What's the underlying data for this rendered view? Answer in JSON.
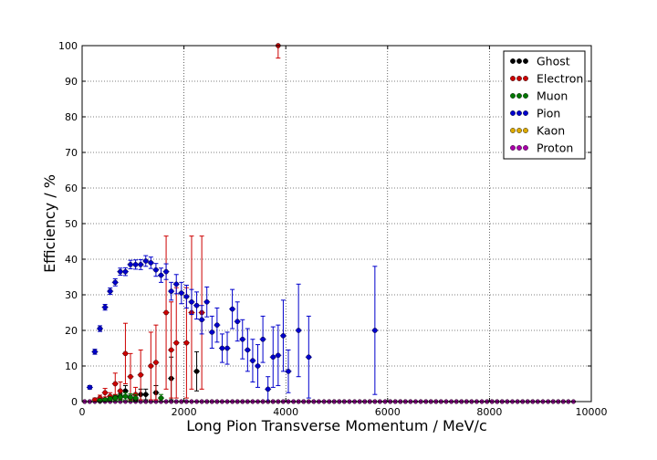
{
  "chart_data": {
    "type": "scatter",
    "title": "",
    "xlabel": "Long Pion Transverse Momentum / MeV/c",
    "ylabel": "Efficiency / %",
    "xlim": [
      0,
      10000
    ],
    "ylim": [
      0,
      100
    ],
    "xticks": [
      "0",
      "2000",
      "4000",
      "6000",
      "8000",
      "10000"
    ],
    "yticks": [
      "0",
      "10",
      "20",
      "30",
      "40",
      "50",
      "60",
      "70",
      "80",
      "90",
      "100"
    ],
    "grid": true,
    "legend_position": "top-right",
    "bin_width": 100,
    "x_start": 50,
    "n_bins": 97,
    "series": [
      {
        "name": "Ghost",
        "color": "#000000",
        "points": [
          [
            450,
            0.5,
            0.3
          ],
          [
            550,
            0.8,
            0.5
          ],
          [
            650,
            1.2,
            0.6
          ],
          [
            750,
            1.5,
            0.8
          ],
          [
            850,
            3.0,
            1.5
          ],
          [
            950,
            1.0,
            0.8
          ],
          [
            1050,
            0.5,
            0.5
          ],
          [
            1150,
            2.0,
            1.5
          ],
          [
            1250,
            2.0,
            1.5
          ],
          [
            1450,
            2.5,
            2.0
          ],
          [
            1750,
            6.5,
            6.0
          ],
          [
            2250,
            8.5,
            5.5
          ]
        ]
      },
      {
        "name": "Electron",
        "color": "#cc0000",
        "points": [
          [
            250,
            0.5,
            0.5
          ],
          [
            350,
            1.0,
            0.8
          ],
          [
            450,
            2.5,
            1.2
          ],
          [
            550,
            1.5,
            1.0
          ],
          [
            650,
            5.0,
            3.0
          ],
          [
            750,
            3.0,
            2.5
          ],
          [
            850,
            13.5,
            8.5
          ],
          [
            950,
            7.0,
            6.5
          ],
          [
            1050,
            2.0,
            2.0
          ],
          [
            1150,
            7.5,
            7.0
          ],
          [
            1350,
            10.0,
            9.5
          ],
          [
            1450,
            11.0,
            10.5
          ],
          [
            1650,
            25.0,
            21.5
          ],
          [
            1750,
            14.5,
            13.5
          ],
          [
            1850,
            16.5,
            15.5
          ],
          [
            2050,
            16.5,
            15.5
          ],
          [
            2150,
            25.0,
            21.5
          ],
          [
            2350,
            25.0,
            21.5
          ],
          [
            3850,
            100.0,
            3.5
          ]
        ]
      },
      {
        "name": "Muon",
        "color": "#007700",
        "points": [
          [
            350,
            0.3,
            0.3
          ],
          [
            450,
            0.5,
            0.4
          ],
          [
            550,
            0.8,
            0.5
          ],
          [
            650,
            1.0,
            0.7
          ],
          [
            750,
            1.2,
            0.8
          ],
          [
            850,
            1.5,
            1.0
          ],
          [
            950,
            1.2,
            1.0
          ],
          [
            1050,
            1.0,
            1.0
          ],
          [
            1550,
            1.0,
            1.0
          ]
        ]
      },
      {
        "name": "Pion",
        "color": "#0000cc",
        "points": [
          [
            150,
            4.0,
            0.5
          ],
          [
            250,
            14.0,
            0.7
          ],
          [
            350,
            20.5,
            0.8
          ],
          [
            450,
            26.5,
            0.8
          ],
          [
            550,
            31.0,
            0.9
          ],
          [
            650,
            33.5,
            1.0
          ],
          [
            750,
            36.5,
            1.0
          ],
          [
            850,
            36.5,
            1.1
          ],
          [
            950,
            38.5,
            1.2
          ],
          [
            1050,
            38.5,
            1.3
          ],
          [
            1150,
            38.5,
            1.4
          ],
          [
            1250,
            39.5,
            1.5
          ],
          [
            1350,
            39.0,
            1.6
          ],
          [
            1450,
            37.0,
            1.8
          ],
          [
            1550,
            35.5,
            2.0
          ],
          [
            1650,
            36.5,
            2.2
          ],
          [
            1750,
            31.0,
            2.5
          ],
          [
            1850,
            33.0,
            2.7
          ],
          [
            1950,
            30.5,
            3.0
          ],
          [
            2050,
            29.5,
            3.2
          ],
          [
            2150,
            28.0,
            3.5
          ],
          [
            2250,
            27.0,
            3.8
          ],
          [
            2350,
            23.0,
            4.0
          ],
          [
            2450,
            28.0,
            4.2
          ],
          [
            2550,
            19.5,
            4.5
          ],
          [
            2650,
            21.5,
            4.8
          ],
          [
            2750,
            15.0,
            4.0
          ],
          [
            2850,
            15.0,
            4.5
          ],
          [
            2950,
            26.0,
            5.5
          ],
          [
            3050,
            22.5,
            5.5
          ],
          [
            3150,
            17.5,
            5.5
          ],
          [
            3250,
            14.5,
            6.0
          ],
          [
            3350,
            11.5,
            6.0
          ],
          [
            3450,
            10.0,
            6.0
          ],
          [
            3550,
            17.5,
            6.5
          ],
          [
            3650,
            3.5,
            3.5
          ],
          [
            3750,
            12.5,
            8.5
          ],
          [
            3850,
            13.0,
            8.5
          ],
          [
            3950,
            18.5,
            10.0
          ],
          [
            4050,
            8.5,
            6.0
          ],
          [
            4250,
            20.0,
            13.0
          ],
          [
            4450,
            12.5,
            11.5
          ],
          [
            5750,
            20.0,
            18.0
          ]
        ]
      },
      {
        "name": "Kaon",
        "color": "#ddaa00",
        "points": []
      },
      {
        "name": "Proton",
        "color": "#aa00aa",
        "points": []
      }
    ]
  }
}
